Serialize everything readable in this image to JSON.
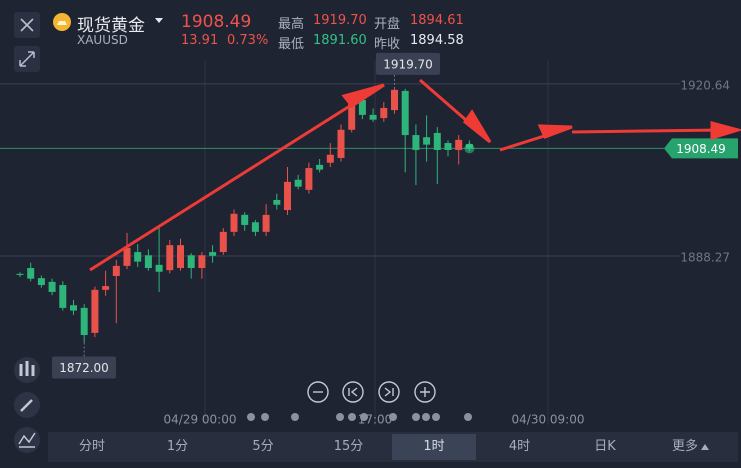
{
  "header": {
    "name": "现货黄金",
    "symbol": "XAUUSD",
    "price": "1908.49",
    "change": "13.91",
    "change_pct": "0.73%",
    "stats": [
      {
        "label": "最高",
        "value": "1919.70"
      },
      {
        "label": "开盘",
        "value": "1894.61"
      },
      {
        "label": "最低",
        "value": "1891.60"
      },
      {
        "label": "昨收",
        "value": "1894.58"
      }
    ]
  },
  "chart_data": {
    "type": "candlestick",
    "up_color": "#e8524a",
    "down_color": "#2db57a",
    "ylim": [
      1859.3,
      1927.0
    ],
    "yticks": [
      1920.64,
      1888.27
    ],
    "x_labels": [
      "04/29 00:00",
      "17:00",
      "04/30 09:00"
    ],
    "open": [
      1884.9,
      1886.0,
      1884.1,
      1883.4,
      1882.8,
      1879.0,
      1878.5,
      1873.8,
      1881.9,
      1884.5,
      1886.4,
      1889.0,
      1888.4,
      1886.6,
      1885.6,
      1886.0,
      1888.4,
      1886.0,
      1889.0,
      1889.0,
      1892.8,
      1896.0,
      1894.6,
      1892.8,
      1898.8,
      1896.9,
      1902.6,
      1900.7,
      1905.4,
      1905.8,
      1906.7,
      1912.0,
      1917.6,
      1914.8,
      1914.2,
      1915.7,
      1919.3,
      1911.0,
      1910.6,
      1911.4,
      1909.5,
      1908.2,
      1909.3
    ],
    "high": [
      1885.2,
      1887.0,
      1884.6,
      1884.0,
      1883.5,
      1880.0,
      1879.2,
      1882.5,
      1885.5,
      1887.5,
      1892.6,
      1890.5,
      1889.5,
      1894.0,
      1891.3,
      1891.5,
      1888.8,
      1889.0,
      1890.3,
      1893.5,
      1897.0,
      1896.5,
      1895.0,
      1898.0,
      1900.0,
      1905.0,
      1903.5,
      1905.8,
      1906.5,
      1909.5,
      1913.0,
      1918.5,
      1918.0,
      1916.0,
      1917.2,
      1919.7,
      1919.7,
      1913.0,
      1914.7,
      1912.5,
      1910.0,
      1911.0,
      1910.0
    ],
    "low": [
      1884.3,
      1883.5,
      1882.3,
      1880.9,
      1878.0,
      1877.2,
      1872.0,
      1873.0,
      1880.8,
      1875.6,
      1885.8,
      1886.2,
      1885.5,
      1881.5,
      1885.0,
      1885.5,
      1884.0,
      1884.0,
      1887.0,
      1888.5,
      1892.0,
      1893.0,
      1892.0,
      1892.0,
      1897.0,
      1896.0,
      1900.8,
      1900.0,
      1904.0,
      1905.0,
      1906.0,
      1911.5,
      1914.0,
      1913.5,
      1913.5,
      1915.0,
      1904.0,
      1901.6,
      1906.0,
      1901.8,
      1907.0,
      1905.5,
      1908.0
    ],
    "close": [
      1884.7,
      1884.0,
      1882.8,
      1881.5,
      1878.5,
      1878.0,
      1873.4,
      1881.9,
      1882.6,
      1886.4,
      1889.8,
      1887.2,
      1886.0,
      1885.3,
      1890.3,
      1890.3,
      1886.0,
      1888.4,
      1888.3,
      1892.8,
      1896.2,
      1894.1,
      1892.8,
      1896.0,
      1897.9,
      1902.2,
      1901.3,
      1904.8,
      1904.5,
      1907.3,
      1912.0,
      1917.6,
      1914.8,
      1913.9,
      1916.1,
      1919.5,
      1911.0,
      1908.2,
      1909.2,
      1908.2,
      1908.2,
      1910.1,
      1908.49
    ],
    "high_label": {
      "value": 1919.7,
      "label": "1919.70"
    },
    "low_label": {
      "value": 1872.0,
      "label": "1872.00"
    },
    "last_price": {
      "value": 1908.49,
      "label": "1908.49"
    }
  },
  "toolbar": {
    "tabs": [
      "分时",
      "1分",
      "5分",
      "15分",
      "1时",
      "4时",
      "日K",
      "更多"
    ],
    "selected": "1时"
  }
}
